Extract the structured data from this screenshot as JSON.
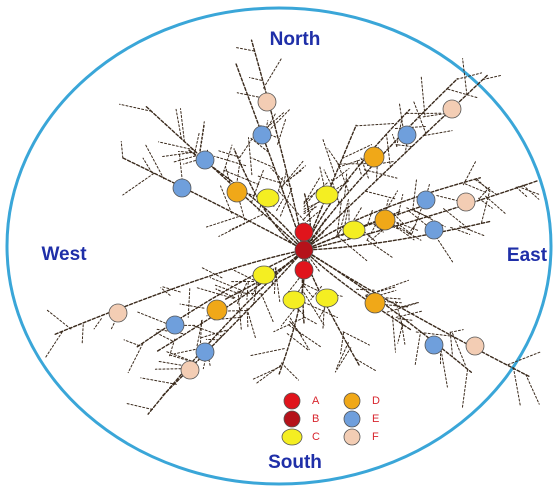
{
  "directions": {
    "north": "North",
    "south": "South",
    "east": "East",
    "west": "West"
  },
  "legend": [
    {
      "label": "A",
      "color": "#e0141c"
    },
    {
      "label": "B",
      "color": "#b5121a"
    },
    {
      "label": "C",
      "color": "#f4ee22"
    },
    {
      "label": "D",
      "color": "#f0a818"
    },
    {
      "label": "E",
      "color": "#6f9fdc"
    },
    {
      "label": "F",
      "color": "#f3cdb4"
    }
  ]
}
